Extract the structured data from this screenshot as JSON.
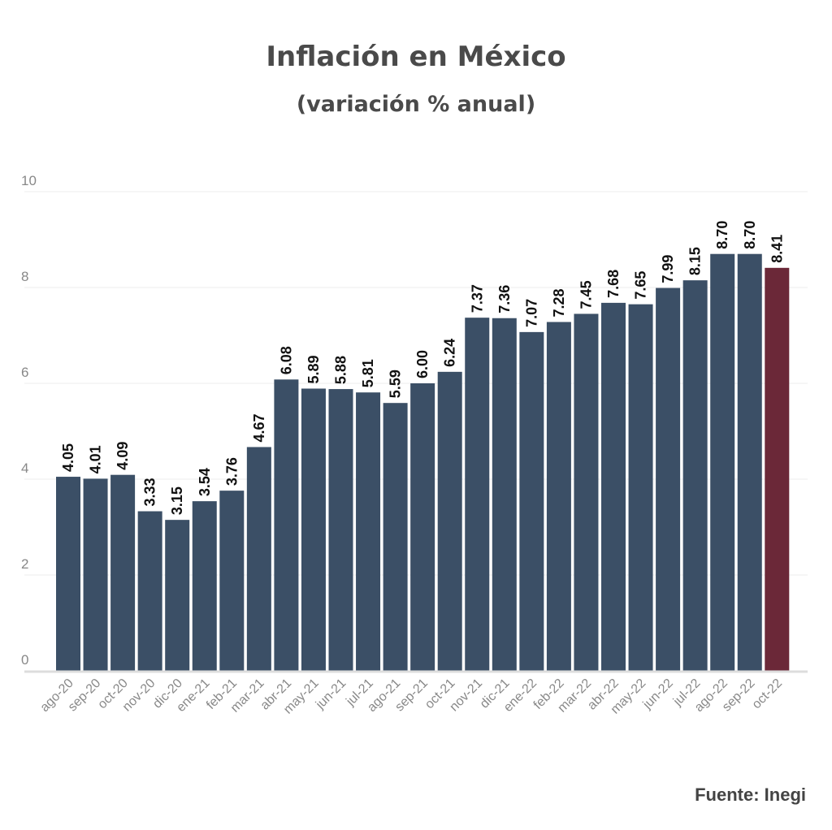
{
  "title": "Inflación en México",
  "subtitle": "(variación % anual)",
  "source": "Fuente: Inegi",
  "colors": {
    "bar": "#3b4f66",
    "highlight": "#6b2838",
    "grid": "#eeeeee",
    "axis": "#dddddd",
    "tick": "#888888",
    "label": "#111111"
  },
  "chart_data": {
    "type": "bar",
    "categories": [
      "ago-20",
      "sep-20",
      "oct-20",
      "nov-20",
      "dic-20",
      "ene-21",
      "feb-21",
      "mar-21",
      "abr-21",
      "may-21",
      "jun-21",
      "jul-21",
      "ago-21",
      "sep-21",
      "oct-21",
      "nov-21",
      "dic-21",
      "ene-22",
      "feb-22",
      "mar-22",
      "abr-22",
      "may-22",
      "jun-22",
      "jul-22",
      "ago-22",
      "sep-22",
      "oct-22"
    ],
    "values": [
      4.05,
      4.01,
      4.09,
      3.33,
      3.15,
      3.54,
      3.76,
      4.67,
      6.08,
      5.89,
      5.88,
      5.81,
      5.59,
      6.0,
      6.24,
      7.37,
      7.36,
      7.07,
      7.28,
      7.45,
      7.68,
      7.65,
      7.99,
      8.15,
      8.7,
      8.7,
      8.41
    ],
    "labels": [
      "4.05",
      "4.01",
      "4.09",
      "3.33",
      "3.15",
      "3.54",
      "3.76",
      "4.67",
      "6.08",
      "5.89",
      "5.88",
      "5.81",
      "5.59",
      "6.00",
      "6.24",
      "7.37",
      "7.36",
      "7.07",
      "7.28",
      "7.45",
      "7.68",
      "7.65",
      "7.99",
      "8.15",
      "8.70",
      "8.70",
      "8.41"
    ],
    "highlight_index": 26,
    "yticks": [
      "0",
      "2",
      "4",
      "6",
      "8",
      "10"
    ],
    "ylim": [
      0,
      10
    ],
    "grid": true,
    "xlabel": "",
    "ylabel": ""
  }
}
